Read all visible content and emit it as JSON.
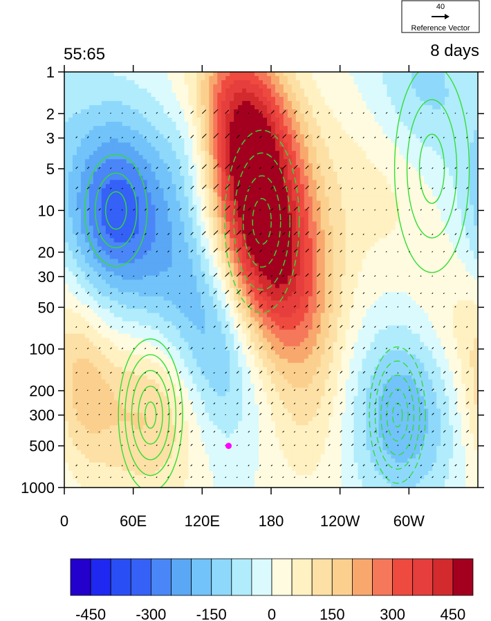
{
  "chart_data": {
    "type": "heatmap",
    "title_left": "55:65",
    "title_right": "8 days",
    "reference_vector": {
      "magnitude": "40",
      "label": "Reference Vector"
    },
    "x_ticks": [
      {
        "lon": 0,
        "label": "0"
      },
      {
        "lon": 60,
        "label": "60E"
      },
      {
        "lon": 120,
        "label": "120E"
      },
      {
        "lon": 180,
        "label": "180"
      },
      {
        "lon": 240,
        "label": "120W"
      },
      {
        "lon": 300,
        "label": "60W"
      }
    ],
    "x_range": [
      0,
      360
    ],
    "y_scale": "log",
    "y_range": [
      1000,
      1
    ],
    "y_ticks": [
      1,
      2,
      3,
      5,
      10,
      20,
      30,
      50,
      100,
      200,
      300,
      500,
      1000
    ],
    "colorbar": {
      "levels": [
        -500,
        -450,
        -400,
        -350,
        -300,
        -250,
        -200,
        -150,
        -100,
        -50,
        0,
        50,
        100,
        150,
        200,
        250,
        300,
        350,
        400,
        450,
        500
      ],
      "colors": [
        "#2300cc",
        "#1e28f0",
        "#2a4ef5",
        "#3561f7",
        "#4a86f7",
        "#5aa7f5",
        "#72c3f9",
        "#8ed9fb",
        "#b0ecfc",
        "#dafafd",
        "#fffbe0",
        "#fff1c2",
        "#fde0a5",
        "#fbd08f",
        "#f8a86d",
        "#f5785a",
        "#ef4a3f",
        "#e63e3c",
        "#d32a2e",
        "#a3001f"
      ],
      "tick_values": [
        -450,
        -300,
        -150,
        0,
        150,
        300,
        450
      ]
    },
    "blobs": [
      {
        "lon": 172,
        "p": 12,
        "value": 440,
        "rlon": 32,
        "rlogp": 0.5
      },
      {
        "lon": 158,
        "p": 3,
        "value": 300,
        "rlon": 28,
        "rlogp": 0.4
      },
      {
        "lon": 140,
        "p": 1.2,
        "value": 160,
        "rlon": 30,
        "rlogp": 0.35
      },
      {
        "lon": 192,
        "p": 40,
        "value": 180,
        "rlon": 30,
        "rlogp": 0.4
      },
      {
        "lon": 212,
        "p": 180,
        "value": 110,
        "rlon": 25,
        "rlogp": 0.55
      },
      {
        "lon": 45,
        "p": 10,
        "value": -330,
        "rlon": 34,
        "rlogp": 0.5
      },
      {
        "lon": 110,
        "p": 30,
        "value": -140,
        "rlon": 30,
        "rlogp": 0.45
      },
      {
        "lon": 135,
        "p": 120,
        "value": -170,
        "rlon": 25,
        "rlogp": 0.5
      },
      {
        "lon": 115,
        "p": 3,
        "value": -110,
        "rlon": 20,
        "rlogp": 0.4
      },
      {
        "lon": 310,
        "p": 1.5,
        "value": -140,
        "rlon": 35,
        "rlogp": 0.45
      },
      {
        "lon": 295,
        "p": 300,
        "value": -200,
        "rlon": 32,
        "rlogp": 0.45
      },
      {
        "lon": 75,
        "p": 300,
        "value": 160,
        "rlon": 40,
        "rlogp": 0.45
      },
      {
        "lon": 15,
        "p": 200,
        "value": 120,
        "rlon": 20,
        "rlogp": 0.4
      },
      {
        "lon": 350,
        "p": 60,
        "value": 80,
        "rlon": 30,
        "rlogp": 0.4
      },
      {
        "lon": 280,
        "p": 5,
        "value": 90,
        "rlon": 40,
        "rlogp": 0.5
      }
    ],
    "marker": {
      "lon": 143,
      "p": 500,
      "color": "#ff00ff"
    },
    "contour_color": "#33dd33"
  }
}
